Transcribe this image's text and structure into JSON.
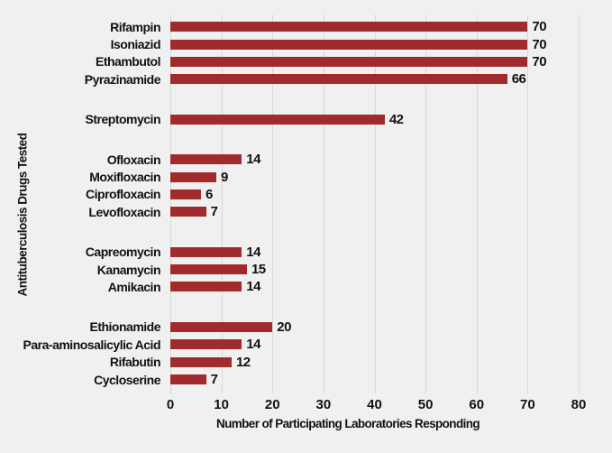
{
  "figure": {
    "background_color": "#f0f0f0",
    "text_color": "#111111"
  },
  "chart_data": {
    "type": "bar",
    "orientation": "horizontal",
    "title": "",
    "xlabel": "Number of Participating Laboratories Responding",
    "ylabel": "Antituberculosis Drugs Tested",
    "xlim": [
      0,
      80
    ],
    "xticks": [
      0,
      10,
      20,
      30,
      40,
      50,
      60,
      70,
      80
    ],
    "grid": true,
    "legend": "none",
    "bar_color": "#a02a2c",
    "gridline_color": "#d8d8d8",
    "categories": [
      "Rifampin",
      "Isoniazid",
      "Ethambutol",
      "Pyrazinamide",
      "Streptomycin",
      "Ofloxacin",
      "Moxifloxacin",
      "Ciprofloxacin",
      "Levofloxacin",
      "Capreomycin",
      "Kanamycin",
      "Amikacin",
      "Ethionamide",
      "Para-aminosalicylic Acid",
      "Rifabutin",
      "Cycloserine"
    ],
    "values": [
      70,
      70,
      70,
      66,
      42,
      14,
      9,
      6,
      7,
      14,
      15,
      14,
      20,
      14,
      12,
      7
    ],
    "groups": [
      {
        "drugs": [
          {
            "label": "Rifampin",
            "value": 70
          },
          {
            "label": "Isoniazid",
            "value": 70
          },
          {
            "label": "Ethambutol",
            "value": 70
          },
          {
            "label": "Pyrazinamide",
            "value": 66
          }
        ]
      },
      {
        "drugs": [
          {
            "label": "Streptomycin",
            "value": 42
          }
        ]
      },
      {
        "drugs": [
          {
            "label": "Ofloxacin",
            "value": 14
          },
          {
            "label": "Moxifloxacin",
            "value": 9
          },
          {
            "label": "Ciprofloxacin",
            "value": 6
          },
          {
            "label": "Levofloxacin",
            "value": 7
          }
        ]
      },
      {
        "drugs": [
          {
            "label": "Capreomycin",
            "value": 14
          },
          {
            "label": "Kanamycin",
            "value": 15
          },
          {
            "label": "Amikacin",
            "value": 14
          }
        ]
      },
      {
        "drugs": [
          {
            "label": "Ethionamide",
            "value": 20
          },
          {
            "label": "Para-aminosalicylic Acid",
            "value": 14
          },
          {
            "label": "Rifabutin",
            "value": 12
          },
          {
            "label": "Cycloserine",
            "value": 7
          }
        ]
      }
    ]
  }
}
